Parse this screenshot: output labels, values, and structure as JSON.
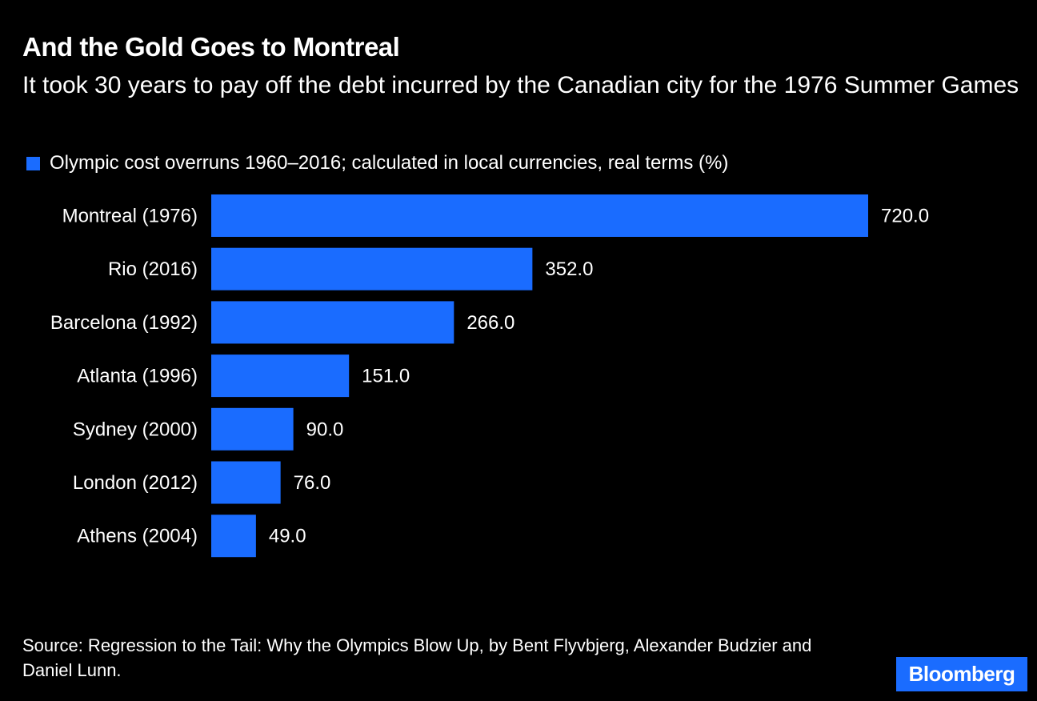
{
  "title": "And the Gold Goes to Montreal",
  "subtitle": "It took 30 years to pay off the debt incurred by the Canadian city for the 1976 Summer Games",
  "source": "Source: Regression to the Tail: Why the Olympics Blow Up, by Bent Flyvbjerg, Alexander Budzier and Daniel Lunn.",
  "logo_text": "Bloomberg",
  "colors": {
    "background": "#000000",
    "bar": "#1a6cff",
    "text": "#ffffff",
    "logo_bg": "#1a6cff"
  },
  "chart_data": {
    "type": "bar",
    "orientation": "horizontal",
    "title": "And the Gold Goes to Montreal",
    "subtitle": "It took 30 years to pay off the debt incurred by the Canadian city for the 1976 Summer Games",
    "categories": [
      "Montreal (1976)",
      "Rio (2016)",
      "Barcelona (1992)",
      "Atlanta (1996)",
      "Sydney (2000)",
      "London (2012)",
      "Athens (2004)"
    ],
    "series": [
      {
        "name": "Olympic cost overruns 1960–2016; calculated in local currencies, real terms (%)",
        "values": [
          720.0,
          352.0,
          266.0,
          151.0,
          90.0,
          76.0,
          49.0
        ],
        "labels": [
          "720.0",
          "352.0",
          "266.0",
          "151.0",
          "90.0",
          "76.0",
          "49.0"
        ]
      }
    ],
    "xlim": [
      0,
      720
    ],
    "grid": false,
    "legend": "top-left"
  }
}
